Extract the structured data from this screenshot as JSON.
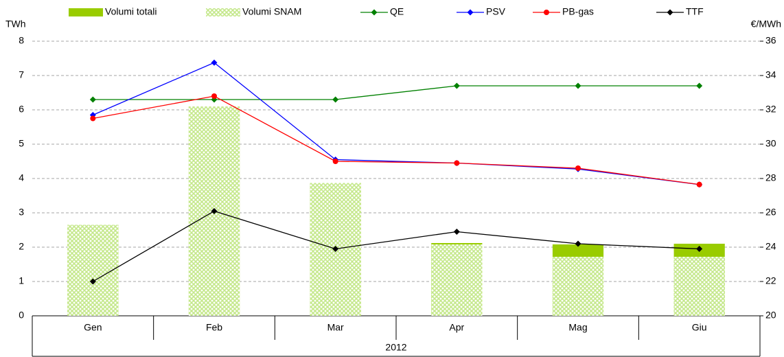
{
  "chart_data": {
    "type": "combo",
    "y_label": "TWh",
    "y2_label": "€/MWh",
    "categories": [
      "Gen",
      "Feb",
      "Mar",
      "Apr",
      "Mag",
      "Giu"
    ],
    "group_label": "2012",
    "ylim": [
      0,
      8
    ],
    "yticks": [
      0,
      1,
      2,
      3,
      4,
      5,
      6,
      7,
      8
    ],
    "y2lim": [
      20,
      36
    ],
    "y2ticks": [
      20,
      22,
      24,
      26,
      28,
      30,
      32,
      34,
      36
    ],
    "grid": true,
    "series": [
      {
        "name": "Volumi totali",
        "type": "bar",
        "color": "#99cc00",
        "values": [
          2.65,
          6.1,
          3.87,
          2.12,
          2.08,
          2.1
        ]
      },
      {
        "name": "Volumi SNAM",
        "type": "bar",
        "color": "#c4e88a",
        "hatch": true,
        "values": [
          2.65,
          6.1,
          3.87,
          2.08,
          1.72,
          1.72
        ]
      },
      {
        "name": "QE",
        "type": "line",
        "axis": "y2",
        "color": "#008000",
        "marker": "diamond",
        "values": [
          32.6,
          32.6,
          32.6,
          33.4,
          33.4,
          33.4
        ]
      },
      {
        "name": "PSV",
        "type": "line",
        "axis": "y2",
        "color": "#0000ff",
        "marker": "diamond",
        "values": [
          31.7,
          34.75,
          29.1,
          28.9,
          28.55,
          27.65
        ]
      },
      {
        "name": "PB-gas",
        "type": "line",
        "axis": "y2",
        "color": "#ff0000",
        "marker": "circle",
        "values": [
          31.5,
          32.8,
          29.0,
          28.9,
          28.6,
          27.65
        ]
      },
      {
        "name": "TTF",
        "type": "line",
        "axis": "y2",
        "color": "#000000",
        "marker": "diamond",
        "values": [
          22.0,
          26.1,
          23.9,
          24.9,
          24.2,
          23.9
        ]
      }
    ]
  }
}
